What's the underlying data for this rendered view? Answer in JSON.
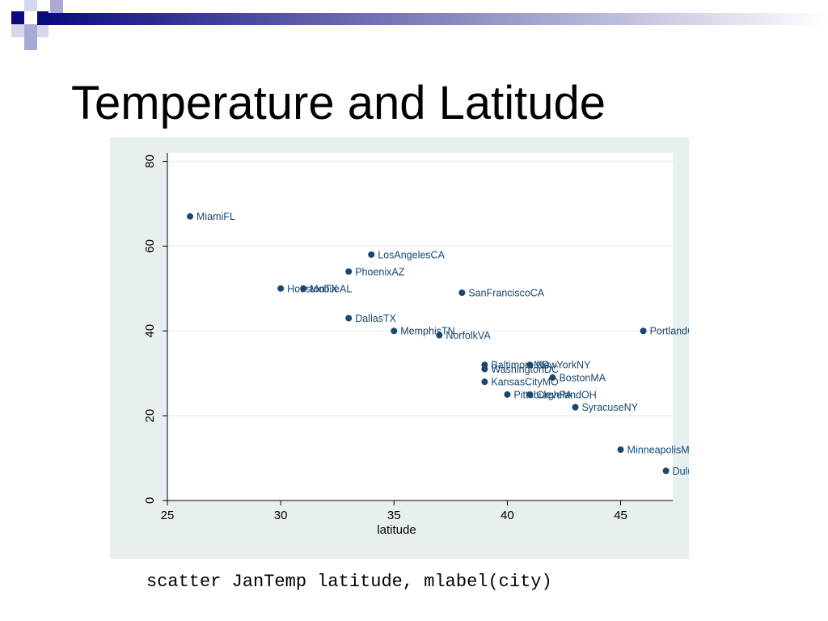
{
  "slide": {
    "title": "Temperature and Latitude",
    "caption": "scatter JanTemp latitude, mlabel(city)"
  },
  "colors": {
    "marker": "#1a476f",
    "plot_background": "#e8eff1",
    "deco_dark": "#0b0b7e",
    "deco_light": "#a9a9d6"
  },
  "chart_data": {
    "type": "scatter",
    "title": "",
    "xlabel": "latitude",
    "ylabel": "",
    "xlim": [
      25,
      47.3
    ],
    "ylim": [
      0,
      82
    ],
    "xticks": [
      25,
      30,
      35,
      40,
      45
    ],
    "yticks": [
      0,
      20,
      40,
      60,
      80
    ],
    "grid": "horizontal",
    "points": [
      {
        "label": "MiamiFL",
        "x": 26,
        "y": 67
      },
      {
        "label": "LosAngelesCA",
        "x": 34,
        "y": 58
      },
      {
        "label": "PhoenixAZ",
        "x": 33,
        "y": 54
      },
      {
        "label": "HoustonTX",
        "x": 30,
        "y": 50
      },
      {
        "label": "MobileAL",
        "x": 31,
        "y": 50
      },
      {
        "label": "SanFranciscoCA",
        "x": 38,
        "y": 49
      },
      {
        "label": "DallasTX",
        "x": 33,
        "y": 43
      },
      {
        "label": "MemphisTN",
        "x": 35,
        "y": 40
      },
      {
        "label": "NorfolkVA",
        "x": 37,
        "y": 39
      },
      {
        "label": "PortlandOR",
        "x": 46,
        "y": 40
      },
      {
        "label": "BaltimoreMD",
        "x": 39,
        "y": 32
      },
      {
        "label": "WashingtonDC",
        "x": 39,
        "y": 31
      },
      {
        "label": "NewYorkNY",
        "x": 41,
        "y": 32
      },
      {
        "label": "BostonMA",
        "x": 42,
        "y": 29
      },
      {
        "label": "KansasCityMO",
        "x": 39,
        "y": 28
      },
      {
        "label": "PittsburghPA",
        "x": 40,
        "y": 25
      },
      {
        "label": "ClevelandOH",
        "x": 41,
        "y": 25
      },
      {
        "label": "SyracuseNY",
        "x": 43,
        "y": 22
      },
      {
        "label": "MinneapolisMN",
        "x": 45,
        "y": 12
      },
      {
        "label": "DuluthMN",
        "x": 47,
        "y": 7
      }
    ]
  }
}
